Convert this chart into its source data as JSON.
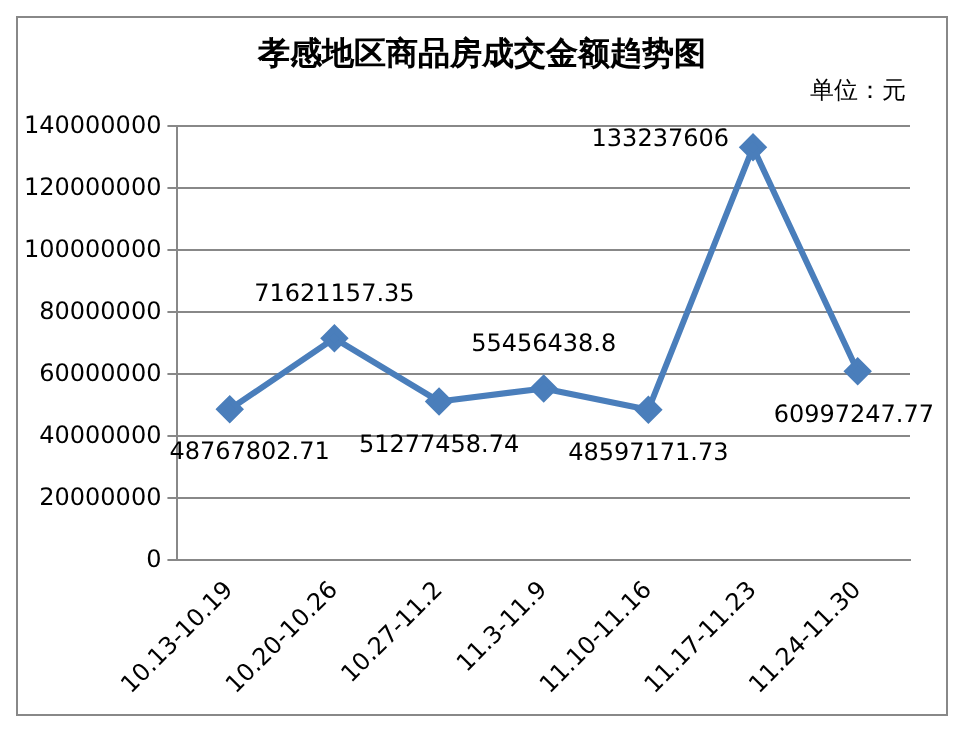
{
  "chart_data": {
    "type": "line",
    "title": "孝感地区商品房成交金额趋势图",
    "annotations": [
      "单位：元"
    ],
    "categories": [
      "10.13-10.19",
      "10.20-10.26",
      "10.27-11.2",
      "11.3-11.9",
      "11.10-11.16",
      "11.17-11.23",
      "11.24-11.30"
    ],
    "series": [
      {
        "color": "#4a7ebb",
        "values": [
          48767802.71,
          71621157.35,
          51277458.74,
          55456438.8,
          48597171.73,
          133237606,
          60997247.77
        ]
      }
    ],
    "ylim": [
      0,
      140000000
    ],
    "yticks": [
      0,
      20000000,
      40000000,
      60000000,
      80000000,
      100000000,
      120000000,
      140000000
    ],
    "grid": "y",
    "legend": false,
    "marker": "diamond",
    "line_style": "solid",
    "data_labels": true
  }
}
